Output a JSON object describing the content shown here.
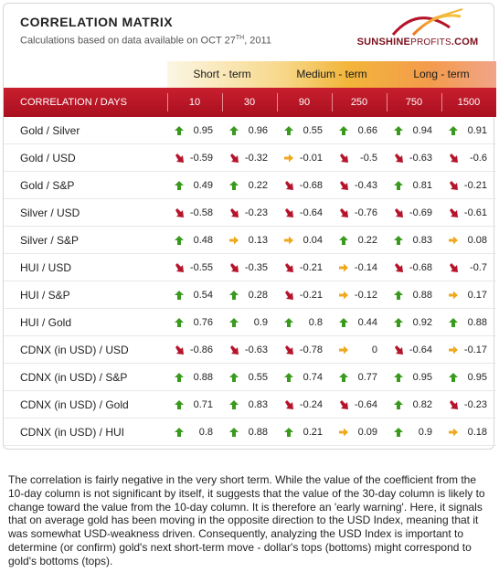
{
  "title": "CORRELATION MATRIX",
  "subtitle_prefix": "Calculations based on data available on  OCT 27",
  "subtitle_sup": "TH",
  "subtitle_suffix": ", 2011",
  "logo": {
    "brand_bold": "SUNSHINE",
    "brand_light": "PROFITS",
    "brand_tail": ".COM"
  },
  "terms": [
    "Short - term",
    "Medium - term",
    "Long - term"
  ],
  "header": {
    "label": "CORRELATION / DAYS",
    "days": [
      "10",
      "30",
      "90",
      "250",
      "750",
      "1500"
    ]
  },
  "colors": {
    "up": "#3a9a1e",
    "down": "#b5142a",
    "flat": "#f0a81c"
  },
  "rows": [
    {
      "label": "Gold / Silver",
      "cells": [
        {
          "v": "0.95",
          "d": "up"
        },
        {
          "v": "0.96",
          "d": "up"
        },
        {
          "v": "0.55",
          "d": "up"
        },
        {
          "v": "0.66",
          "d": "up"
        },
        {
          "v": "0.94",
          "d": "up"
        },
        {
          "v": "0.91",
          "d": "up"
        }
      ]
    },
    {
      "label": "Gold / USD",
      "cells": [
        {
          "v": "-0.59",
          "d": "down"
        },
        {
          "v": "-0.32",
          "d": "down"
        },
        {
          "v": "-0.01",
          "d": "flat"
        },
        {
          "v": "-0.5",
          "d": "down"
        },
        {
          "v": "-0.63",
          "d": "down"
        },
        {
          "v": "-0.6",
          "d": "down"
        }
      ]
    },
    {
      "label": "Gold / S&P",
      "cells": [
        {
          "v": "0.49",
          "d": "up"
        },
        {
          "v": "0.22",
          "d": "up"
        },
        {
          "v": "-0.68",
          "d": "down"
        },
        {
          "v": "-0.43",
          "d": "down"
        },
        {
          "v": "0.81",
          "d": "up"
        },
        {
          "v": "-0.21",
          "d": "down"
        }
      ]
    },
    {
      "label": "Silver / USD",
      "cells": [
        {
          "v": "-0.58",
          "d": "down"
        },
        {
          "v": "-0.23",
          "d": "down"
        },
        {
          "v": "-0.64",
          "d": "down"
        },
        {
          "v": "-0.76",
          "d": "down"
        },
        {
          "v": "-0.69",
          "d": "down"
        },
        {
          "v": "-0.61",
          "d": "down"
        }
      ]
    },
    {
      "label": "Silver / S&P",
      "cells": [
        {
          "v": "0.48",
          "d": "up"
        },
        {
          "v": "0.13",
          "d": "flat"
        },
        {
          "v": "0.04",
          "d": "flat"
        },
        {
          "v": "0.22",
          "d": "up"
        },
        {
          "v": "0.83",
          "d": "up"
        },
        {
          "v": "0.08",
          "d": "flat"
        }
      ]
    },
    {
      "label": "HUI / USD",
      "cells": [
        {
          "v": "-0.55",
          "d": "down"
        },
        {
          "v": "-0.35",
          "d": "down"
        },
        {
          "v": "-0.21",
          "d": "down"
        },
        {
          "v": "-0.14",
          "d": "flat"
        },
        {
          "v": "-0.68",
          "d": "down"
        },
        {
          "v": "-0.7",
          "d": "down"
        }
      ]
    },
    {
      "label": "HUI / S&P",
      "cells": [
        {
          "v": "0.54",
          "d": "up"
        },
        {
          "v": "0.28",
          "d": "up"
        },
        {
          "v": "-0.21",
          "d": "down"
        },
        {
          "v": "-0.12",
          "d": "flat"
        },
        {
          "v": "0.88",
          "d": "up"
        },
        {
          "v": "0.17",
          "d": "flat"
        }
      ]
    },
    {
      "label": "HUI / Gold",
      "cells": [
        {
          "v": "0.76",
          "d": "up"
        },
        {
          "v": "0.9",
          "d": "up"
        },
        {
          "v": "0.8",
          "d": "up"
        },
        {
          "v": "0.44",
          "d": "up"
        },
        {
          "v": "0.92",
          "d": "up"
        },
        {
          "v": "0.88",
          "d": "up"
        }
      ]
    },
    {
      "label": "CDNX (in USD) / USD",
      "cells": [
        {
          "v": "-0.86",
          "d": "down"
        },
        {
          "v": "-0.63",
          "d": "down"
        },
        {
          "v": "-0.78",
          "d": "down"
        },
        {
          "v": "0",
          "d": "flat"
        },
        {
          "v": "-0.64",
          "d": "down"
        },
        {
          "v": "-0.17",
          "d": "flat"
        }
      ]
    },
    {
      "label": "CDNX (in USD) / S&P",
      "cells": [
        {
          "v": "0.88",
          "d": "up"
        },
        {
          "v": "0.55",
          "d": "up"
        },
        {
          "v": "0.74",
          "d": "up"
        },
        {
          "v": "0.77",
          "d": "up"
        },
        {
          "v": "0.95",
          "d": "up"
        },
        {
          "v": "0.95",
          "d": "up"
        }
      ]
    },
    {
      "label": "CDNX (in USD) / Gold",
      "cells": [
        {
          "v": "0.71",
          "d": "up"
        },
        {
          "v": "0.83",
          "d": "up"
        },
        {
          "v": "-0.24",
          "d": "down"
        },
        {
          "v": "-0.64",
          "d": "down"
        },
        {
          "v": "0.82",
          "d": "up"
        },
        {
          "v": "-0.23",
          "d": "down"
        }
      ]
    },
    {
      "label": "CDNX (in USD) / HUI",
      "cells": [
        {
          "v": "0.8",
          "d": "up"
        },
        {
          "v": "0.88",
          "d": "up"
        },
        {
          "v": "0.21",
          "d": "up"
        },
        {
          "v": "0.09",
          "d": "flat"
        },
        {
          "v": "0.9",
          "d": "up"
        },
        {
          "v": "0.18",
          "d": "flat"
        }
      ]
    }
  ],
  "description": "The correlation is fairly negative in the very short term. While the value of the coefficient from the 10-day column is not significant by itself, it suggests that the value of the 30-day column is likely to change toward the value from the 10-day column. It is therefore an 'early warning'. Here, it signals that on average gold has been moving in the opposite direction to the USD Index, meaning that it was somewhat USD-weakness driven. Consequently, analyzing the USD Index is important to determine (or confirm) gold's next short-term move - dollar's tops (bottoms) might correspond to gold's bottoms (tops)."
}
